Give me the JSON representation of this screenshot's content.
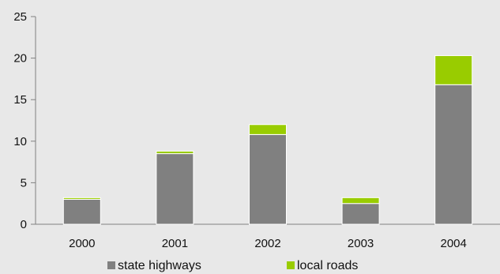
{
  "chart_data": {
    "type": "bar",
    "stacked": true,
    "categories": [
      "2000",
      "2001",
      "2002",
      "2003",
      "2004"
    ],
    "series": [
      {
        "name": "state highways",
        "values": [
          3.0,
          8.5,
          10.8,
          2.5,
          16.8
        ],
        "color": "#808080"
      },
      {
        "name": "local roads",
        "values": [
          0.2,
          0.3,
          1.2,
          0.7,
          3.5
        ],
        "color": "#99cc00"
      }
    ],
    "ylim": [
      0,
      25
    ],
    "yticks": [
      "0",
      "5",
      "10",
      "15",
      "20",
      "25"
    ],
    "grid": false,
    "legend_position": "bottom",
    "axis_color": "#808080",
    "bar_edge_color": "#ffffff",
    "background_color": "#e8e8e8"
  }
}
